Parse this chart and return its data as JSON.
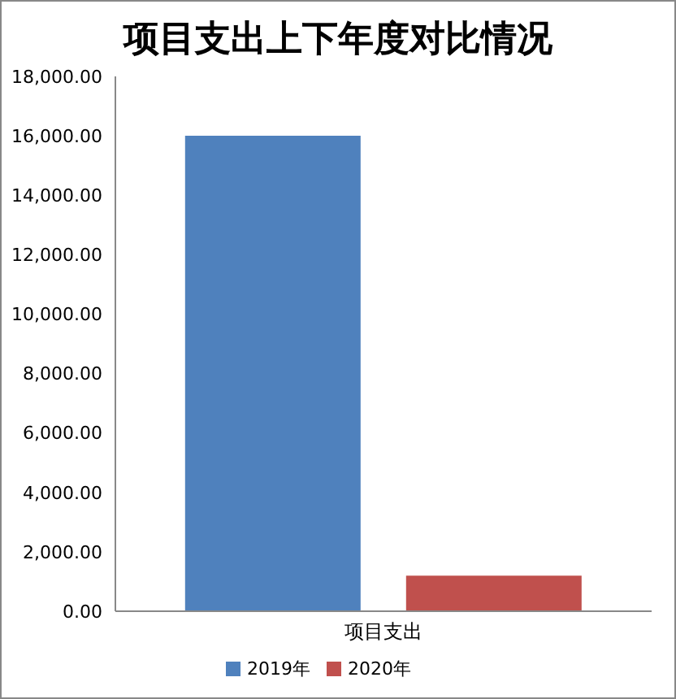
{
  "chart_data": {
    "type": "bar",
    "title": "项目支出上下年度对比情况",
    "categories": [
      "项目支出"
    ],
    "series": [
      {
        "name": "2019年",
        "color": "#4f81bd",
        "values": [
          16000
        ]
      },
      {
        "name": "2020年",
        "color": "#c0504d",
        "values": [
          1200
        ]
      }
    ],
    "ylim": [
      0,
      18000
    ],
    "yticks": [
      {
        "value": 0,
        "label": "0.00"
      },
      {
        "value": 2000,
        "label": "2,000.00"
      },
      {
        "value": 4000,
        "label": "4,000.00"
      },
      {
        "value": 6000,
        "label": "6,000.00"
      },
      {
        "value": 8000,
        "label": "8,000.00"
      },
      {
        "value": 10000,
        "label": "10,000.00"
      },
      {
        "value": 12000,
        "label": "12,000.00"
      },
      {
        "value": 14000,
        "label": "14,000.00"
      },
      {
        "value": 16000,
        "label": "16,000.00"
      },
      {
        "value": 18000,
        "label": "18,000.00"
      }
    ],
    "grid": false,
    "legend": "bottom"
  }
}
